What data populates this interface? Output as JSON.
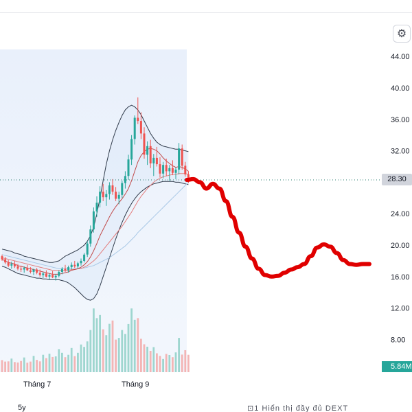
{
  "chart_data": {
    "type": "line",
    "title": "",
    "xlabel": "",
    "ylabel": "",
    "y_axis_ticks": [
      "44.00",
      "40.00",
      "36.00",
      "32.00",
      "28.30",
      "24.00",
      "20.00",
      "16.00",
      "12.00",
      "8.00"
    ],
    "ylim": [
      6,
      46
    ],
    "x_axis_ticks": [
      "Tháng 7",
      "Tháng 9"
    ],
    "grid": false,
    "last_price": "28.30",
    "last_volume": "5.84M",
    "series": [
      {
        "kind": "candlestick",
        "values": [
          [
            18.6,
            18.8,
            18.0,
            18.2
          ],
          [
            18.2,
            18.5,
            17.6,
            17.8
          ],
          [
            17.8,
            18.1,
            17.2,
            17.4
          ],
          [
            17.4,
            17.9,
            17.0,
            17.6
          ],
          [
            17.6,
            18.0,
            17.1,
            17.3
          ],
          [
            17.3,
            17.6,
            16.8,
            17.0
          ],
          [
            17.0,
            17.4,
            16.6,
            16.9
          ],
          [
            16.9,
            17.3,
            16.5,
            17.1
          ],
          [
            17.1,
            17.5,
            16.7,
            16.8
          ],
          [
            16.8,
            17.2,
            16.4,
            16.6
          ],
          [
            16.6,
            17.0,
            16.2,
            16.9
          ],
          [
            16.9,
            17.1,
            16.3,
            16.5
          ],
          [
            16.5,
            16.9,
            16.0,
            16.2
          ],
          [
            16.2,
            16.6,
            15.8,
            16.4
          ],
          [
            16.4,
            16.8,
            15.9,
            16.0
          ],
          [
            16.0,
            16.4,
            15.6,
            16.2
          ],
          [
            16.2,
            16.7,
            15.8,
            15.9
          ],
          [
            15.9,
            16.3,
            15.5,
            16.1
          ],
          [
            16.1,
            16.8,
            15.9,
            16.6
          ],
          [
            16.6,
            17.2,
            16.3,
            17.0
          ],
          [
            17.0,
            17.5,
            16.6,
            16.8
          ],
          [
            16.8,
            17.4,
            16.5,
            17.2
          ],
          [
            17.2,
            17.8,
            16.9,
            17.5
          ],
          [
            17.5,
            18.0,
            17.1,
            17.3
          ],
          [
            17.3,
            17.9,
            17.0,
            17.7
          ],
          [
            17.7,
            18.3,
            17.4,
            18.0
          ],
          [
            18.0,
            19.0,
            17.8,
            18.8
          ],
          [
            18.8,
            20.5,
            18.5,
            20.2
          ],
          [
            20.2,
            22.5,
            19.8,
            22.0
          ],
          [
            22.0,
            24.8,
            21.6,
            24.3
          ],
          [
            24.3,
            26.2,
            23.6,
            25.4
          ],
          [
            25.4,
            27.5,
            24.8,
            26.8
          ],
          [
            26.8,
            27.8,
            25.6,
            26.1
          ],
          [
            26.1,
            27.0,
            25.0,
            26.5
          ],
          [
            26.5,
            28.0,
            25.8,
            27.6
          ],
          [
            27.6,
            28.4,
            26.4,
            26.8
          ],
          [
            26.8,
            27.4,
            25.6,
            25.9
          ],
          [
            25.9,
            26.8,
            25.2,
            26.4
          ],
          [
            26.4,
            28.2,
            26.0,
            27.9
          ],
          [
            27.9,
            29.4,
            27.2,
            28.8
          ],
          [
            28.8,
            31.5,
            28.3,
            30.9
          ],
          [
            30.9,
            34.0,
            30.2,
            33.5
          ],
          [
            33.5,
            36.5,
            32.8,
            36.2
          ],
          [
            36.2,
            38.8,
            35.4,
            35.8
          ],
          [
            35.8,
            36.9,
            33.5,
            34.2
          ],
          [
            34.2,
            35.0,
            31.0,
            31.5
          ],
          [
            31.5,
            33.2,
            30.2,
            32.6
          ],
          [
            32.6,
            33.4,
            29.8,
            30.4
          ],
          [
            30.4,
            31.6,
            28.8,
            31.1
          ],
          [
            31.1,
            32.5,
            30.0,
            30.3
          ],
          [
            30.3,
            31.2,
            28.6,
            29.1
          ],
          [
            29.1,
            30.6,
            28.5,
            30.2
          ],
          [
            30.2,
            31.0,
            28.8,
            29.4
          ],
          [
            29.4,
            30.2,
            28.2,
            29.8
          ],
          [
            29.8,
            30.8,
            28.9,
            29.2
          ],
          [
            29.2,
            29.9,
            28.4,
            29.6
          ],
          [
            29.6,
            33.0,
            29.0,
            32.3
          ],
          [
            32.3,
            32.8,
            29.6,
            30.1
          ],
          [
            30.1,
            30.6,
            28.7,
            29.0
          ],
          [
            29.0,
            29.4,
            27.9,
            28.3
          ]
        ]
      },
      {
        "kind": "volume",
        "values": [
          5.5,
          4.8,
          4.9,
          6.2,
          4.6,
          4.4,
          5.1,
          6.7,
          4.3,
          4.8,
          7.4,
          5.6,
          4.9,
          7.9,
          6.4,
          8.4,
          6.9,
          7.2,
          10.5,
          8.8,
          6.8,
          7.9,
          11.0,
          7.3,
          8.8,
          12.6,
          11.5,
          14.0,
          19.2,
          29.0,
          24.6,
          26.0,
          19.5,
          16.8,
          22.0,
          23.5,
          14.8,
          15.6,
          19.2,
          17.4,
          21.9,
          29.0,
          23.8,
          24.6,
          15.2,
          12.7,
          11.6,
          9.7,
          11.4,
          8.6,
          7.4,
          6.0,
          8.3,
          7.8,
          6.8,
          9.0,
          15.6,
          8.0,
          10.0,
          7.9
        ]
      },
      {
        "kind": "moving-average-short",
        "values": [
          18.2,
          18.0,
          17.8,
          17.7,
          17.6,
          17.4,
          17.3,
          17.2,
          17.1,
          17.0,
          16.9,
          16.8,
          16.7,
          16.6,
          16.5,
          16.4,
          16.3,
          16.3,
          16.3,
          16.4,
          16.5,
          16.6,
          16.8,
          16.9,
          17.0,
          17.2,
          17.5,
          17.9,
          18.5,
          19.3,
          20.2,
          21.2,
          22.0,
          22.8,
          23.6,
          24.3,
          24.9,
          25.4,
          25.9,
          26.5,
          27.2,
          28.2,
          29.4,
          30.6,
          31.4,
          31.9,
          32.2,
          32.3,
          32.2,
          32.0,
          31.6,
          31.1,
          30.7,
          30.4,
          30.1,
          29.9,
          30.0,
          29.9,
          29.7,
          29.4
        ]
      },
      {
        "kind": "moving-average-mid",
        "values": [
          18.4,
          18.3,
          18.2,
          18.1,
          18.0,
          17.9,
          17.8,
          17.7,
          17.6,
          17.5,
          17.4,
          17.3,
          17.2,
          17.1,
          17.0,
          16.9,
          16.8,
          16.8,
          16.8,
          16.8,
          16.8,
          16.8,
          16.9,
          16.9,
          17.0,
          17.0,
          17.2,
          17.4,
          17.7,
          18.0,
          18.4,
          18.9,
          19.4,
          19.9,
          20.4,
          20.9,
          21.4,
          21.9,
          22.4,
          23.0,
          23.6,
          24.2,
          24.9,
          25.6,
          26.2,
          26.7,
          27.2,
          27.6,
          28.0,
          28.3,
          28.5,
          28.7,
          28.8,
          28.9,
          29.0,
          29.0,
          29.1,
          29.1,
          29.1,
          29.0
        ]
      },
      {
        "kind": "moving-average-long",
        "values": [
          18.8,
          18.7,
          18.6,
          18.5,
          18.4,
          18.3,
          18.2,
          18.1,
          18.0,
          17.9,
          17.8,
          17.7,
          17.6,
          17.5,
          17.4,
          17.3,
          17.2,
          17.1,
          17.0,
          17.0,
          17.0,
          17.0,
          17.0,
          17.0,
          17.0,
          17.1,
          17.1,
          17.2,
          17.3,
          17.4,
          17.6,
          17.8,
          18.0,
          18.2,
          18.4,
          18.7,
          19.0,
          19.3,
          19.6,
          19.9,
          20.3,
          20.7,
          21.1,
          21.6,
          22.0,
          22.4,
          22.8,
          23.2,
          23.6,
          24.0,
          24.4,
          24.8,
          25.2,
          25.6,
          26.0,
          26.4,
          26.8,
          27.2,
          27.6,
          28.0
        ]
      },
      {
        "kind": "bollinger-upper",
        "values": [
          19.5,
          19.4,
          19.3,
          19.2,
          19.0,
          18.9,
          18.8,
          18.6,
          18.5,
          18.4,
          18.3,
          18.2,
          18.1,
          18.0,
          17.9,
          17.8,
          17.8,
          17.9,
          18.0,
          18.3,
          18.6,
          18.8,
          19.0,
          19.2,
          19.4,
          19.7,
          20.0,
          20.5,
          21.2,
          22.3,
          24.0,
          26.0,
          28.2,
          30.3,
          32.0,
          33.4,
          34.6,
          35.6,
          36.5,
          37.2,
          37.6,
          37.8,
          37.6,
          37.2,
          36.6,
          35.8,
          35.0,
          34.2,
          33.6,
          33.1,
          32.8,
          32.6,
          32.5,
          32.4,
          32.3,
          32.2,
          32.2,
          32.1,
          32.0,
          31.9
        ]
      },
      {
        "kind": "bollinger-lower",
        "values": [
          17.3,
          17.2,
          17.0,
          16.8,
          16.6,
          16.4,
          16.3,
          16.2,
          16.1,
          16.0,
          15.9,
          15.8,
          15.8,
          15.7,
          15.7,
          15.6,
          15.6,
          15.6,
          15.6,
          15.5,
          15.4,
          15.2,
          14.9,
          14.6,
          14.2,
          13.8,
          13.4,
          13.1,
          13.0,
          13.2,
          13.8,
          14.8,
          16.0,
          17.2,
          18.4,
          19.6,
          20.8,
          21.9,
          22.9,
          23.8,
          24.6,
          25.3,
          25.9,
          26.4,
          26.8,
          27.1,
          27.4,
          27.6,
          27.8,
          27.9,
          28.0,
          28.1,
          28.1,
          28.1,
          28.1,
          28.0,
          28.0,
          27.9,
          27.8,
          27.7
        ]
      },
      {
        "kind": "drawn-projection",
        "color": "#e00000",
        "values": [
          28.3,
          28.4,
          28.0,
          27.2,
          27.8,
          27.2,
          25.6,
          23.6,
          21.6,
          19.8,
          18.3,
          17.0,
          16.2,
          16.0,
          16.1,
          16.5,
          16.9,
          17.2,
          17.6,
          18.6,
          19.7,
          20.1,
          19.8,
          19.0,
          18.1,
          17.6,
          17.5,
          17.6,
          17.6
        ]
      }
    ]
  },
  "ui": {
    "settings_icon": "gear-icon",
    "range_label": "5y",
    "footer_text": "⊡1  Hiển thị đầy đủ  DEXT"
  }
}
